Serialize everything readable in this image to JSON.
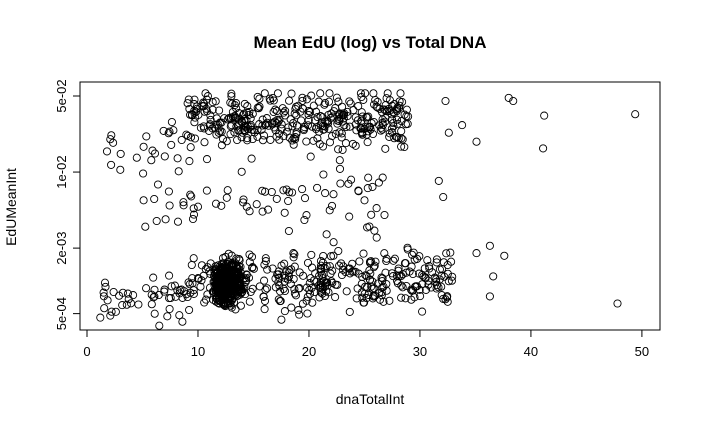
{
  "chart_data": {
    "type": "scatter",
    "title": "Mean EdU (log) vs Total DNA",
    "xlabel": "dnaTotalInt",
    "ylabel": "EdUMeanInt",
    "x_scale": "linear",
    "y_scale": "log",
    "xlim": [
      0,
      51
    ],
    "ylim": [
      0.00041,
      0.058
    ],
    "x_ticks": [
      {
        "value": 0,
        "label": "0"
      },
      {
        "value": 10,
        "label": "10"
      },
      {
        "value": 20,
        "label": "20"
      },
      {
        "value": 30,
        "label": "30"
      },
      {
        "value": 40,
        "label": "40"
      },
      {
        "value": 50,
        "label": "50"
      }
    ],
    "y_ticks": [
      {
        "value": 0.0005,
        "label": "5e-04"
      },
      {
        "value": 0.002,
        "label": "2e-03"
      },
      {
        "value": 0.01,
        "label": "1e-02"
      },
      {
        "value": 0.05,
        "label": "5e-02"
      }
    ],
    "grid": false,
    "legend": "none",
    "marker": "open-circle",
    "marker_color": "#000000",
    "clusters": [
      {
        "kind": "dense",
        "x_center": 12.6,
        "x_spread": 0.9,
        "y_center": 0.00095,
        "y_spread_log10": 0.13,
        "n": 420
      },
      {
        "kind": "low-band",
        "x_range": [
          9,
          33
        ],
        "y_center": 0.00105,
        "y_spread_log10": 0.17,
        "n": 330
      },
      {
        "kind": "low-left",
        "x_range": [
          1.2,
          9
        ],
        "y_center": 0.00072,
        "y_spread_log10": 0.14,
        "n": 45
      },
      {
        "kind": "upper-band",
        "x_range": [
          9,
          29
        ],
        "y_center": 0.03,
        "y_spread_log10": 0.18,
        "n": 380
      },
      {
        "kind": "upper-left",
        "x_range": [
          1.5,
          9
        ],
        "y_center": 0.018,
        "y_spread_log10": 0.17,
        "n": 22
      },
      {
        "kind": "middle-scatter",
        "x_range": [
          5,
          28
        ],
        "y_center": 0.0055,
        "y_spread_log10": 0.25,
        "n": 60
      }
    ],
    "points": [
      {
        "x": 38.0,
        "y": 0.048
      },
      {
        "x": 38.4,
        "y": 0.045
      },
      {
        "x": 41.2,
        "y": 0.033
      },
      {
        "x": 41.1,
        "y": 0.0165
      },
      {
        "x": 49.4,
        "y": 0.034
      },
      {
        "x": 35.1,
        "y": 0.019
      },
      {
        "x": 32.3,
        "y": 0.045
      },
      {
        "x": 33.8,
        "y": 0.027
      },
      {
        "x": 32.6,
        "y": 0.023
      },
      {
        "x": 31.7,
        "y": 0.0083
      },
      {
        "x": 32.1,
        "y": 0.0059
      },
      {
        "x": 47.8,
        "y": 0.00062
      },
      {
        "x": 36.3,
        "y": 0.00072
      },
      {
        "x": 36.6,
        "y": 0.0011
      },
      {
        "x": 37.6,
        "y": 0.0017
      },
      {
        "x": 36.3,
        "y": 0.0021
      },
      {
        "x": 35.1,
        "y": 0.0018
      },
      {
        "x": 32.5,
        "y": 0.0014
      },
      {
        "x": 31.5,
        "y": 0.00085
      },
      {
        "x": 30.2,
        "y": 0.00093
      },
      {
        "x": 31.1,
        "y": 0.0012
      },
      {
        "x": 8.2,
        "y": 0.0035
      },
      {
        "x": 5.1,
        "y": 0.0055
      },
      {
        "x": 1.8,
        "y": 0.0155
      },
      {
        "x": 3.0,
        "y": 0.0105
      },
      {
        "x": 25.9,
        "y": 0.0029
      },
      {
        "x": 26.1,
        "y": 0.0025
      },
      {
        "x": 17.7,
        "y": 0.0068
      },
      {
        "x": 12.6,
        "y": 0.0058
      },
      {
        "x": 12.1,
        "y": 0.0049
      },
      {
        "x": 10.0,
        "y": 0.0048
      },
      {
        "x": 9.3,
        "y": 0.0062
      },
      {
        "x": 14.4,
        "y": 0.0048
      },
      {
        "x": 14.1,
        "y": 0.0056
      },
      {
        "x": 21.3,
        "y": 0.0095
      },
      {
        "x": 22.8,
        "y": 0.0107
      },
      {
        "x": 25.0,
        "y": 0.0055
      },
      {
        "x": 23.8,
        "y": 0.0085
      },
      {
        "x": 2.1,
        "y": 0.00048
      },
      {
        "x": 1.2,
        "y": 0.00046
      },
      {
        "x": 1.5,
        "y": 0.00078
      },
      {
        "x": 2.6,
        "y": 0.00052
      },
      {
        "x": 9.2,
        "y": 0.00054
      },
      {
        "x": 16.0,
        "y": 0.00055
      },
      {
        "x": 20.3,
        "y": 0.00063
      },
      {
        "x": 24.8,
        "y": 0.0007
      },
      {
        "x": 26.4,
        "y": 0.00067
      },
      {
        "x": 28.3,
        "y": 0.0007
      },
      {
        "x": 29.2,
        "y": 0.00083
      },
      {
        "x": 25.5,
        "y": 0.0015
      },
      {
        "x": 22.2,
        "y": 0.0017
      },
      {
        "x": 18.6,
        "y": 0.0018
      },
      {
        "x": 26.0,
        "y": 0.0015
      },
      {
        "x": 27.0,
        "y": 0.0016
      }
    ]
  }
}
